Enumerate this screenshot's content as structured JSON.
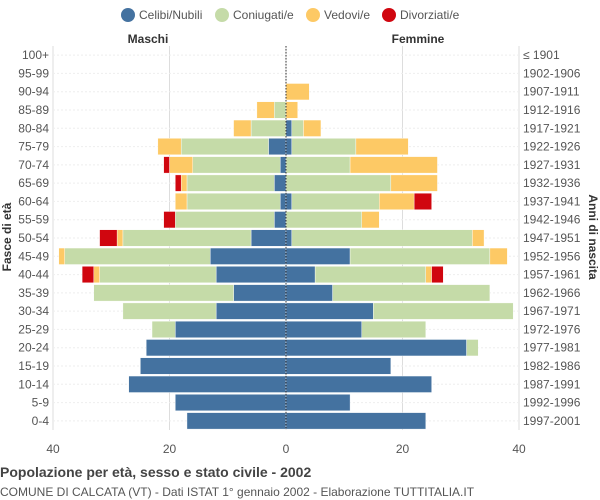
{
  "chart_data": {
    "type": "bar",
    "title": "Popolazione per età, sesso e stato civile - 2002",
    "subtitle": "COMUNE DI CALCATA (VT) - Dati ISTAT 1° gennaio 2002 - Elaborazione TUTTITALIA.IT",
    "left_label": "Maschi",
    "right_label": "Femmine",
    "ylabel_left": "Fasce di età",
    "ylabel_right": "Anni di nascita",
    "xlim": [
      -40,
      40
    ],
    "x_ticks": [
      -40,
      -20,
      0,
      20,
      40
    ],
    "x_tick_labels": [
      "40",
      "20",
      "0",
      "20",
      "40"
    ],
    "legend": [
      {
        "name": "Celibi/Nubili",
        "color": "#4472a0"
      },
      {
        "name": "Coniugati/e",
        "color": "#c5dba8"
      },
      {
        "name": "Vedovi/e",
        "color": "#fdc965"
      },
      {
        "name": "Divorziati/e",
        "color": "#d0060f"
      }
    ],
    "age_groups": [
      "100+",
      "95-99",
      "90-94",
      "85-89",
      "80-84",
      "75-79",
      "70-74",
      "65-69",
      "60-64",
      "55-59",
      "50-54",
      "45-49",
      "40-44",
      "35-39",
      "30-34",
      "25-29",
      "20-24",
      "15-19",
      "10-14",
      "5-9",
      "0-4"
    ],
    "birth_years": [
      "≤ 1901",
      "1902-1906",
      "1907-1911",
      "1912-1916",
      "1917-1921",
      "1922-1926",
      "1927-1931",
      "1932-1936",
      "1937-1941",
      "1942-1946",
      "1947-1951",
      "1952-1956",
      "1957-1961",
      "1962-1966",
      "1967-1971",
      "1972-1976",
      "1977-1981",
      "1982-1986",
      "1987-1991",
      "1992-1996",
      "1997-2001"
    ],
    "males": {
      "celibi": [
        0,
        0,
        0,
        0,
        0,
        3,
        1,
        2,
        1,
        2,
        6,
        13,
        12,
        9,
        12,
        19,
        24,
        25,
        27,
        19,
        17
      ],
      "coniugati": [
        0,
        0,
        0,
        2,
        6,
        15,
        15,
        15,
        16,
        17,
        22,
        25,
        20,
        24,
        16,
        4,
        0,
        0,
        0,
        0,
        0
      ],
      "vedovi": [
        0,
        0,
        0,
        3,
        3,
        4,
        4,
        1,
        2,
        0,
        1,
        1,
        1,
        0,
        0,
        0,
        0,
        0,
        0,
        0,
        0
      ],
      "divorziati": [
        0,
        0,
        0,
        0,
        0,
        0,
        1,
        1,
        0,
        2,
        3,
        0,
        2,
        0,
        0,
        0,
        0,
        0,
        0,
        0,
        0
      ]
    },
    "females": {
      "nubili": [
        0,
        0,
        0,
        0,
        1,
        1,
        0,
        0,
        1,
        0,
        1,
        11,
        5,
        8,
        15,
        13,
        31,
        18,
        25,
        11,
        24
      ],
      "coniugate": [
        0,
        0,
        0,
        0,
        2,
        11,
        11,
        18,
        15,
        13,
        31,
        24,
        19,
        27,
        24,
        11,
        2,
        0,
        0,
        0,
        0
      ],
      "vedove": [
        0,
        0,
        4,
        2,
        3,
        9,
        15,
        8,
        6,
        3,
        2,
        3,
        1,
        0,
        0,
        0,
        0,
        0,
        0,
        0,
        0
      ],
      "divorziate": [
        0,
        0,
        0,
        0,
        0,
        0,
        0,
        0,
        3,
        0,
        0,
        0,
        2,
        0,
        0,
        0,
        0,
        0,
        0,
        0,
        0
      ]
    }
  }
}
